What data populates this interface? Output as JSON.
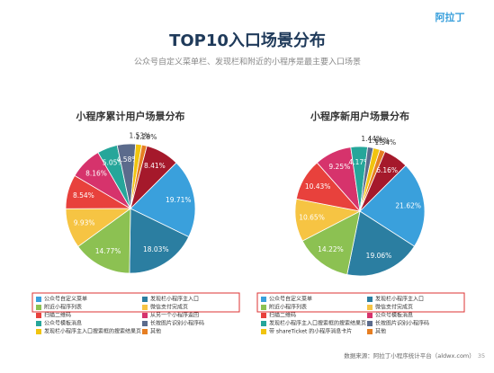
{
  "slide": {
    "title": "TOP10入口场景分布",
    "subtitle": "公众号自定义菜单栏、发现栏和附近的小程序是最主要入口场景",
    "logo": "阿拉丁",
    "source": "数据来源：阿拉丁小程序统计平台（aldwx.com）",
    "page": "35"
  },
  "chart_data": [
    {
      "type": "pie",
      "title": "小程序累计用户场景分布",
      "categories": [
        "公众号自定义菜单",
        "发现栏小程序主入口",
        "附近小程序列表",
        "微信支付完成页",
        "扫描二维码",
        "从另一个小程序返回",
        "公众号模板消息",
        "长按图片识别小程序码",
        "发现栏小程序主入口搜索框的搜索结果页",
        "其他",
        null
      ],
      "values": [
        19.71,
        18.03,
        14.77,
        9.93,
        8.54,
        8.16,
        5.05,
        4.58,
        1.53,
        1.28,
        8.41
      ],
      "value_labels": [
        "19.71%",
        "18.03%",
        "14.77%",
        "9.93%",
        "8.54%",
        "8.16%",
        "5.05%",
        "4.58%",
        "1.53%",
        "1.28%",
        "8.41%"
      ],
      "colors": [
        "#3aa0dc",
        "#2b7ea1",
        "#8cc152",
        "#f6c443",
        "#e8413c",
        "#d6336c",
        "#26a69a",
        "#5b6b8c",
        "#f1c40f",
        "#e67e22",
        "#a5192b"
      ]
    },
    {
      "type": "pie",
      "title": "小程序新用户场景分布",
      "categories": [
        "公众号自定义菜单",
        "发现栏小程序主入口",
        "附近小程序列表",
        "微信支付完成页",
        "扫描二维码",
        "公众号模板消息",
        "发现栏小程序主入口搜索框的搜索结果页",
        "长按图片识别小程序码",
        "带 shareTicket 的小程序消息卡片",
        "其他",
        null
      ],
      "values": [
        21.62,
        19.06,
        14.22,
        10.65,
        10.43,
        9.25,
        4.17,
        1.44,
        1.66,
        1.34,
        6.16
      ],
      "value_labels": [
        "21.62%",
        "19.06%",
        "14.22%",
        "10.65%",
        "10.43%",
        "9.25%",
        "4.17%",
        "1.44%",
        "1.66%",
        "1.34%",
        "6.16%"
      ],
      "colors": [
        "#3aa0dc",
        "#2b7ea1",
        "#8cc152",
        "#f6c443",
        "#e8413c",
        "#d6336c",
        "#26a69a",
        "#5b6b8c",
        "#f1c40f",
        "#e67e22",
        "#a5192b"
      ]
    }
  ]
}
